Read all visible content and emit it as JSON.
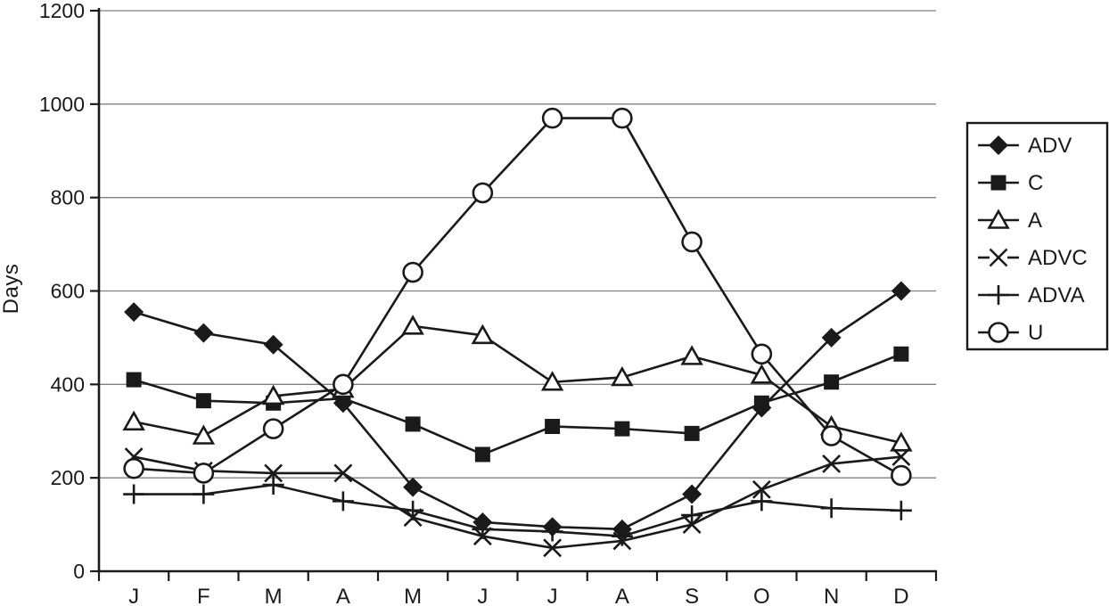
{
  "chart_data": {
    "type": "line",
    "title": "",
    "ylabel": "Days",
    "xlabel": "",
    "categories": [
      "J",
      "F",
      "M",
      "A",
      "M",
      "J",
      "J",
      "A",
      "S",
      "O",
      "N",
      "D"
    ],
    "ylim": [
      0,
      1200
    ],
    "ytick_step": 200,
    "ytick_labels": [
      "0",
      "200",
      "400",
      "600",
      "800",
      "1000",
      "1200"
    ],
    "grid": true,
    "legend_position": "right",
    "colors": {
      "series": "#1a1a1a",
      "grid": "#808080",
      "axis": "#1a1a1a",
      "text": "#1a1a1a",
      "background": "#ffffff"
    },
    "series": [
      {
        "name": "ADV",
        "marker": "filled-diamond-icon",
        "values": [
          555,
          510,
          485,
          360,
          180,
          105,
          95,
          90,
          165,
          350,
          500,
          600
        ]
      },
      {
        "name": "C",
        "marker": "filled-square-icon",
        "values": [
          410,
          365,
          360,
          370,
          315,
          250,
          310,
          305,
          295,
          360,
          405,
          465
        ]
      },
      {
        "name": "A",
        "marker": "open-triangle-icon",
        "values": [
          320,
          290,
          375,
          390,
          525,
          505,
          405,
          415,
          460,
          420,
          310,
          275
        ]
      },
      {
        "name": "ADVC",
        "marker": "x-cross-icon",
        "values": [
          245,
          215,
          210,
          210,
          115,
          75,
          50,
          65,
          100,
          175,
          230,
          245
        ]
      },
      {
        "name": "ADVA",
        "marker": "plus-icon",
        "values": [
          165,
          165,
          185,
          150,
          130,
          90,
          85,
          75,
          120,
          150,
          135,
          130
        ]
      },
      {
        "name": "U",
        "marker": "open-circle-icon",
        "values": [
          220,
          210,
          305,
          400,
          640,
          810,
          970,
          970,
          705,
          465,
          290,
          205
        ]
      }
    ]
  }
}
